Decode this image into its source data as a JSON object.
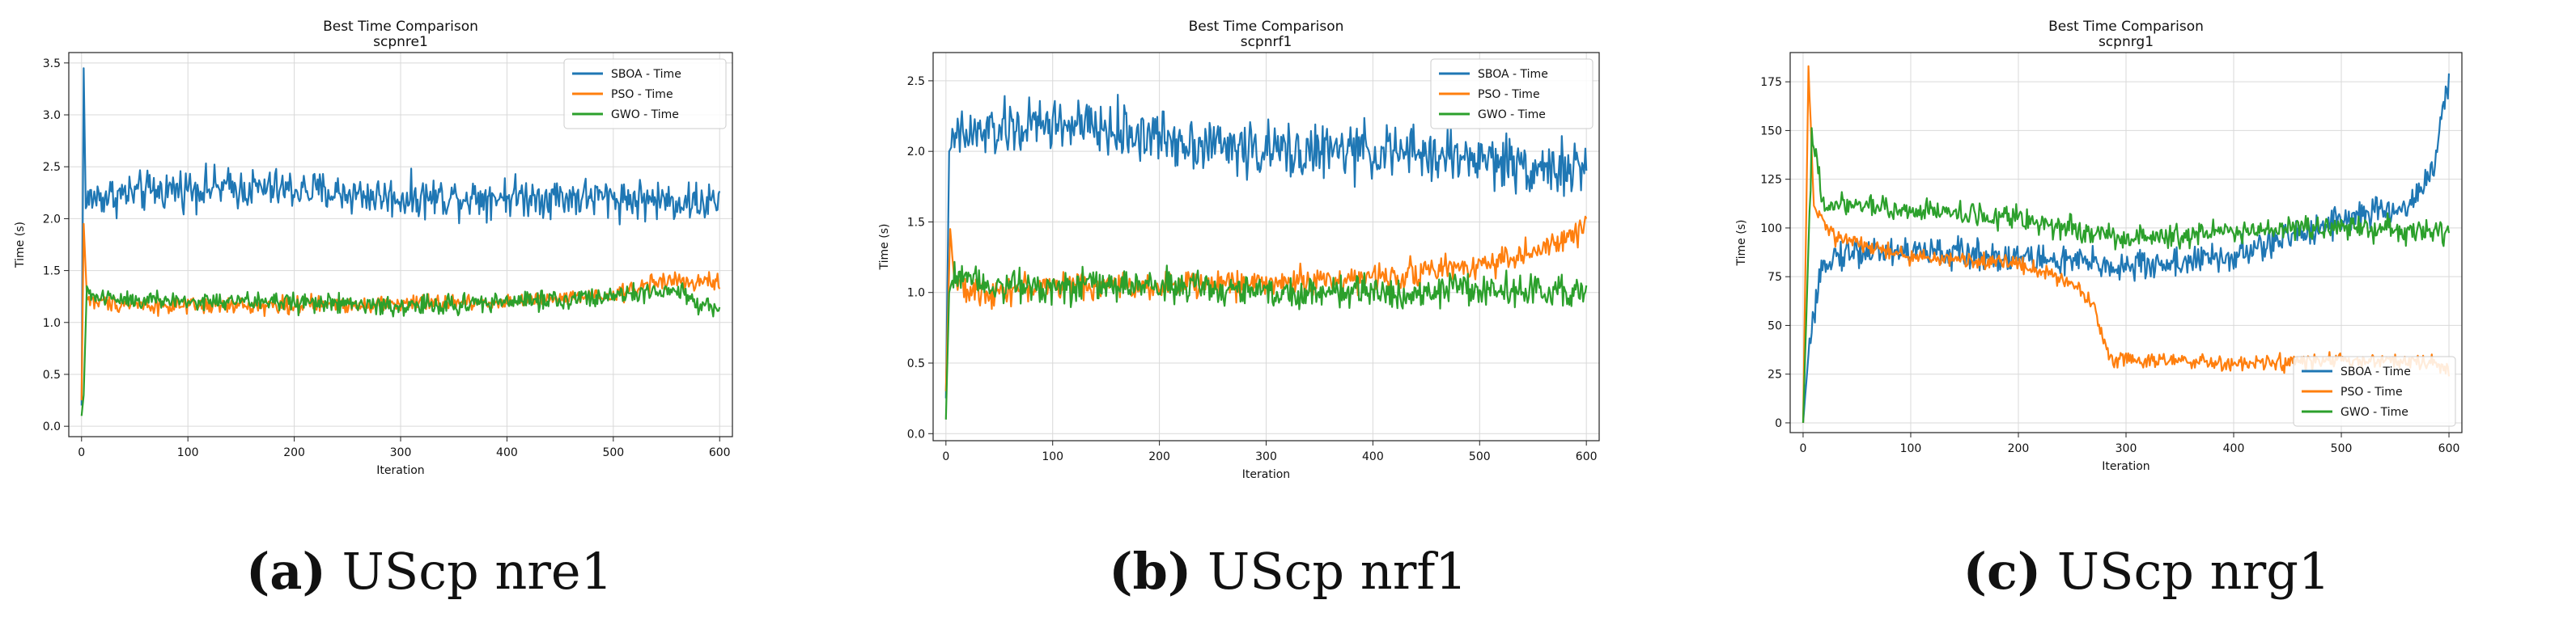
{
  "colors": {
    "SBOA": "#1f77b4",
    "PSO": "#ff7f0e",
    "GWO": "#2ca02c",
    "grid": "#d9d9d9"
  },
  "chart_data": [
    {
      "type": "line",
      "title": "Best Time Comparison",
      "subtitle": "scpnre1",
      "xlabel": "Iteration",
      "ylabel": "Time (s)",
      "xlim": [
        -12,
        612
      ],
      "ylim": [
        -0.1,
        3.6
      ],
      "xticks": [
        0,
        100,
        200,
        300,
        400,
        500,
        600
      ],
      "yticks": [
        0.0,
        0.5,
        1.0,
        1.5,
        2.0,
        2.5,
        3.0,
        3.5
      ],
      "legend_position": "top-right",
      "caption_label": "(a)",
      "caption_text": " UScp nre1",
      "series": [
        {
          "name": "SBOA - Time",
          "key": "SBOA",
          "keypoints": [
            [
              0,
              0.2
            ],
            [
              2,
              3.45
            ],
            [
              4,
              2.1
            ],
            [
              8,
              2.2
            ],
            [
              100,
              2.3
            ],
            [
              200,
              2.28
            ],
            [
              300,
              2.2
            ],
            [
              400,
              2.22
            ],
            [
              500,
              2.2
            ],
            [
              600,
              2.15
            ]
          ],
          "noise": 0.12
        },
        {
          "name": "PSO - Time",
          "key": "PSO",
          "keypoints": [
            [
              0,
              0.25
            ],
            [
              2,
              1.95
            ],
            [
              5,
              1.25
            ],
            [
              10,
              1.2
            ],
            [
              100,
              1.15
            ],
            [
              200,
              1.17
            ],
            [
              300,
              1.18
            ],
            [
              400,
              1.2
            ],
            [
              500,
              1.25
            ],
            [
              540,
              1.4
            ],
            [
              600,
              1.38
            ]
          ],
          "noise": 0.05
        },
        {
          "name": "GWO - Time",
          "key": "GWO",
          "keypoints": [
            [
              0,
              0.1
            ],
            [
              2,
              0.3
            ],
            [
              5,
              1.35
            ],
            [
              10,
              1.25
            ],
            [
              100,
              1.2
            ],
            [
              200,
              1.2
            ],
            [
              300,
              1.15
            ],
            [
              400,
              1.2
            ],
            [
              500,
              1.25
            ],
            [
              560,
              1.3
            ],
            [
              580,
              1.15
            ],
            [
              600,
              1.15
            ]
          ],
          "noise": 0.06
        }
      ]
    },
    {
      "type": "line",
      "title": "Best Time Comparison",
      "subtitle": "scpnrf1",
      "xlabel": "Iteration",
      "ylabel": "Time (s)",
      "xlim": [
        -12,
        612
      ],
      "ylim": [
        -0.05,
        2.7
      ],
      "xticks": [
        0,
        100,
        200,
        300,
        400,
        500,
        600
      ],
      "yticks": [
        0.0,
        0.5,
        1.0,
        1.5,
        2.0,
        2.5
      ],
      "legend_position": "top-right",
      "caption_label": "(b)",
      "caption_text": " UScp nrf1",
      "series": [
        {
          "name": "SBOA - Time",
          "key": "SBOA",
          "keypoints": [
            [
              0,
              0.25
            ],
            [
              3,
              2.0
            ],
            [
              10,
              2.1
            ],
            [
              100,
              2.2
            ],
            [
              200,
              2.1
            ],
            [
              300,
              2.0
            ],
            [
              400,
              2.0
            ],
            [
              500,
              1.95
            ],
            [
              600,
              1.85
            ]
          ],
          "noise": 0.12
        },
        {
          "name": "PSO - Time",
          "key": "PSO",
          "keypoints": [
            [
              0,
              0.3
            ],
            [
              4,
              1.45
            ],
            [
              8,
              1.1
            ],
            [
              20,
              1.0
            ],
            [
              100,
              1.05
            ],
            [
              200,
              1.05
            ],
            [
              300,
              1.07
            ],
            [
              400,
              1.1
            ],
            [
              500,
              1.2
            ],
            [
              560,
              1.3
            ],
            [
              600,
              1.45
            ]
          ],
          "noise": 0.06
        },
        {
          "name": "GWO - Time",
          "key": "GWO",
          "keypoints": [
            [
              0,
              0.1
            ],
            [
              3,
              1.0
            ],
            [
              8,
              1.15
            ],
            [
              50,
              1.05
            ],
            [
              100,
              1.05
            ],
            [
              200,
              1.05
            ],
            [
              300,
              1.0
            ],
            [
              400,
              1.0
            ],
            [
              500,
              1.02
            ],
            [
              600,
              1.0
            ]
          ],
          "noise": 0.07
        }
      ]
    },
    {
      "type": "line",
      "title": "Best Time Comparison",
      "subtitle": "scpnrg1",
      "xlabel": "Iteration",
      "ylabel": "Time (s)",
      "xlim": [
        -12,
        612
      ],
      "ylim": [
        -5,
        190
      ],
      "xticks": [
        0,
        100,
        200,
        300,
        400,
        500,
        600
      ],
      "yticks": [
        0,
        25,
        50,
        75,
        100,
        125,
        150,
        175
      ],
      "legend_position": "bottom-right",
      "caption_label": "(c)",
      "caption_text": " UScp nrg1",
      "series": [
        {
          "name": "SBOA - Time",
          "key": "SBOA",
          "keypoints": [
            [
              0,
              0
            ],
            [
              5,
              35
            ],
            [
              20,
              85
            ],
            [
              50,
              88
            ],
            [
              100,
              88
            ],
            [
              200,
              85
            ],
            [
              300,
              80
            ],
            [
              400,
              85
            ],
            [
              450,
              95
            ],
            [
              500,
              105
            ],
            [
              560,
              110
            ],
            [
              585,
              130
            ],
            [
              600,
              175
            ]
          ],
          "noise": 5
        },
        {
          "name": "PSO - Time",
          "key": "PSO",
          "keypoints": [
            [
              0,
              0
            ],
            [
              5,
              183
            ],
            [
              10,
              110
            ],
            [
              30,
              95
            ],
            [
              100,
              85
            ],
            [
              200,
              82
            ],
            [
              250,
              72
            ],
            [
              270,
              60
            ],
            [
              285,
              33
            ],
            [
              300,
              33
            ],
            [
              400,
              30
            ],
            [
              500,
              32
            ],
            [
              580,
              31
            ],
            [
              600,
              27
            ]
          ],
          "noise": 2.5
        },
        {
          "name": "GWO - Time",
          "key": "GWO",
          "keypoints": [
            [
              0,
              0
            ],
            [
              8,
              145
            ],
            [
              20,
              112
            ],
            [
              100,
              110
            ],
            [
              200,
              105
            ],
            [
              300,
              95
            ],
            [
              400,
              98
            ],
            [
              500,
              100
            ],
            [
              600,
              98
            ]
          ],
          "noise": 4
        }
      ]
    }
  ]
}
